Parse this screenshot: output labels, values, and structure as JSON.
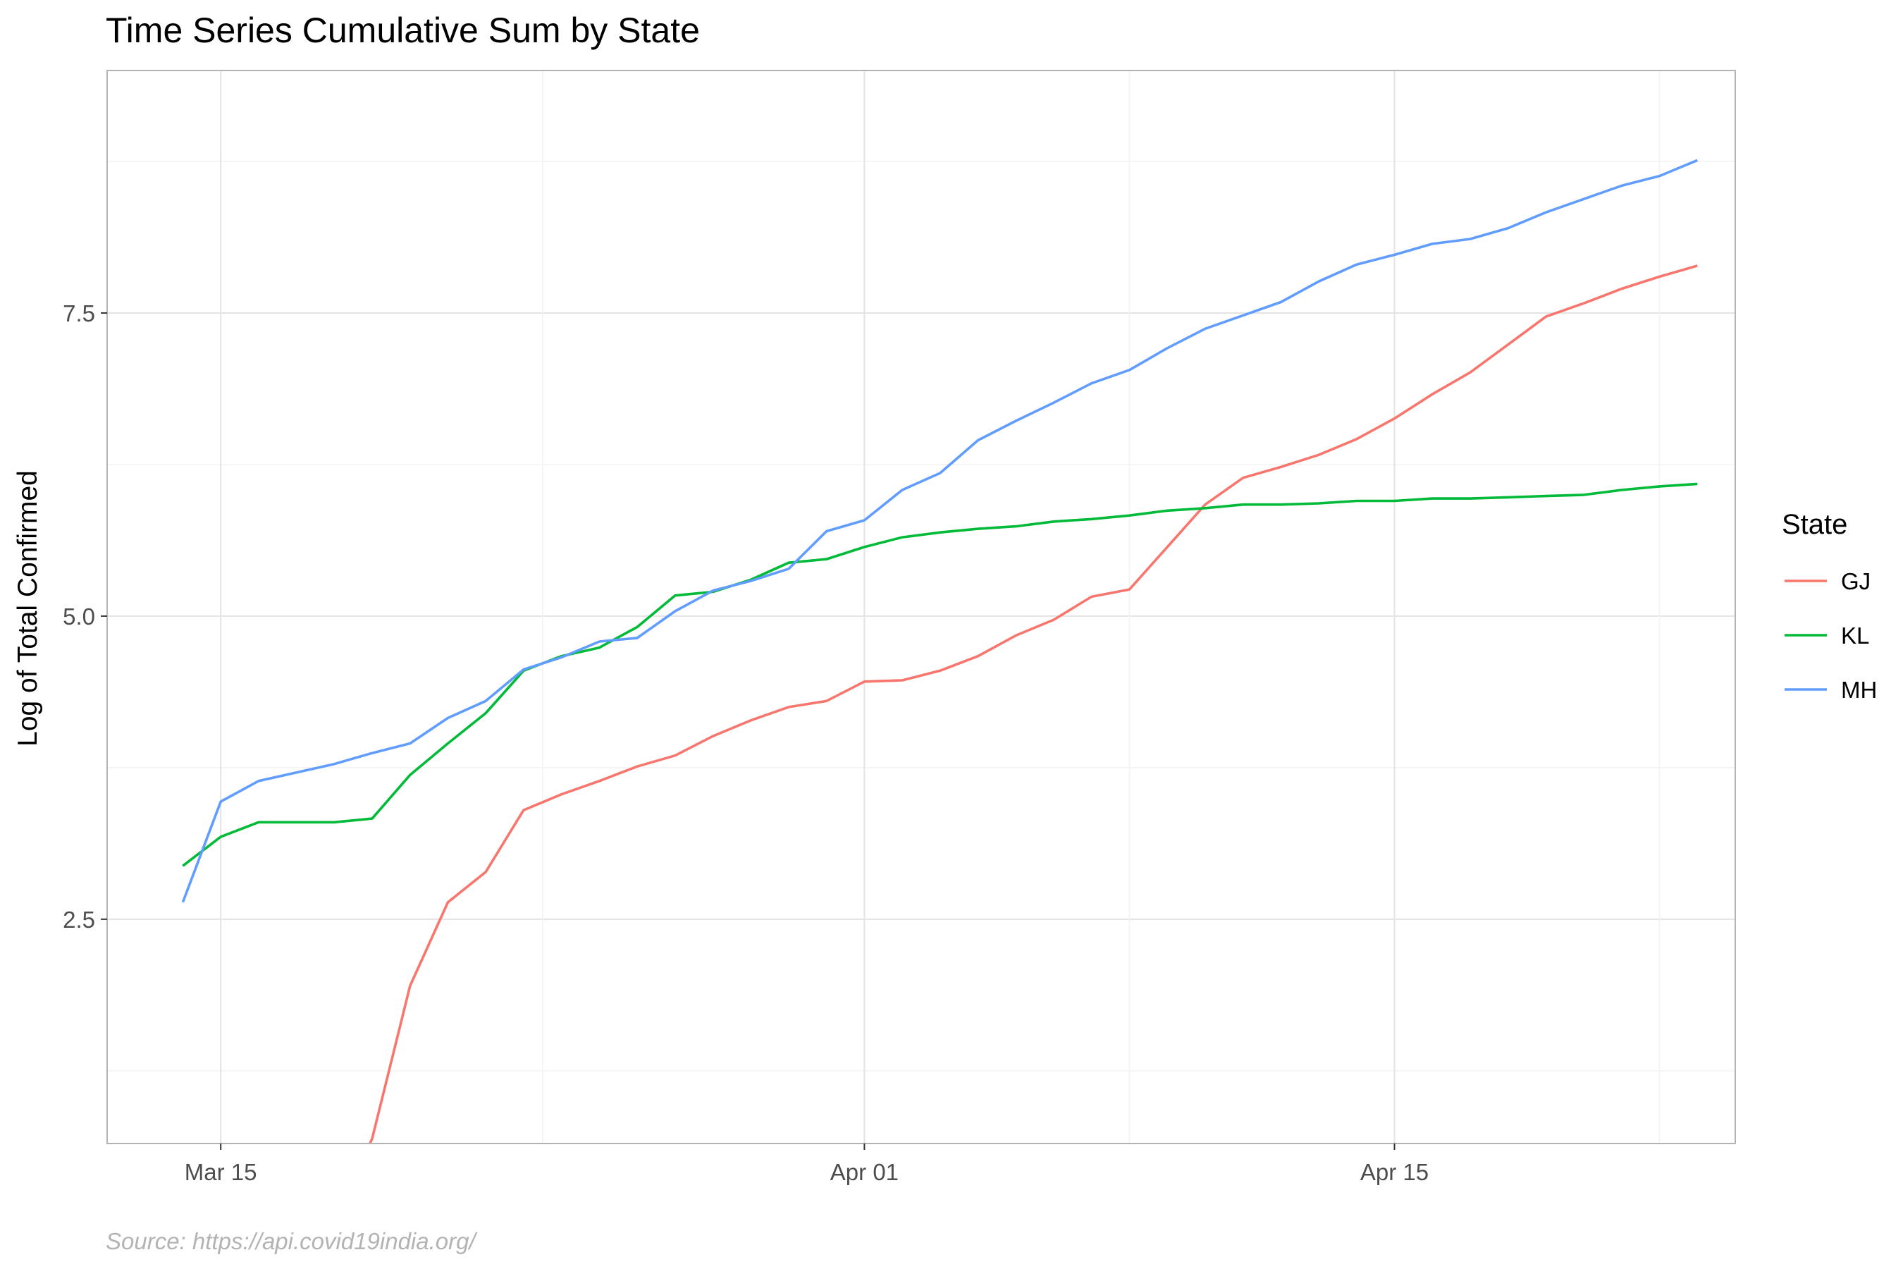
{
  "chart_data": {
    "type": "line",
    "title": "Time Series Cumulative Sum by State",
    "xlabel": "",
    "ylabel": "Log of Total Confirmed",
    "caption": "Source: https://api.covid19india.org/",
    "x_start_date": "2020-03-14",
    "x_end_date": "2020-04-23",
    "xlim": [
      "2020-03-12",
      "2020-04-24"
    ],
    "ylim": [
      0.65,
      9.5
    ],
    "x_ticks": [
      {
        "date": "2020-03-15",
        "label": "Mar 15"
      },
      {
        "date": "2020-04-01",
        "label": "Apr 01"
      },
      {
        "date": "2020-04-15",
        "label": "Apr 15"
      }
    ],
    "y_ticks": [
      {
        "value": 2.5,
        "label": "2.5"
      },
      {
        "value": 5.0,
        "label": "5.0"
      },
      {
        "value": 7.5,
        "label": "7.5"
      }
    ],
    "grid": true,
    "legend": {
      "title": "State",
      "position": "right"
    },
    "series": [
      {
        "name": "GJ",
        "color": "#F8766D",
        "x_start": "2020-03-18",
        "values": [
          0.0,
          0.69,
          1.95,
          2.64,
          2.89,
          3.4,
          3.53,
          3.64,
          3.76,
          3.85,
          4.01,
          4.14,
          4.25,
          4.3,
          4.46,
          4.47,
          4.55,
          4.67,
          4.84,
          4.97,
          5.16,
          5.22,
          5.57,
          5.92,
          6.14,
          6.23,
          6.33,
          6.46,
          6.63,
          6.83,
          7.01,
          7.24,
          7.47,
          7.58,
          7.7,
          7.8,
          7.89
        ]
      },
      {
        "name": "KL",
        "color": "#00BA38",
        "x_start": "2020-03-14",
        "values": [
          2.94,
          3.18,
          3.3,
          3.3,
          3.3,
          3.33,
          3.69,
          3.95,
          4.2,
          4.55,
          4.67,
          4.74,
          4.91,
          5.17,
          5.2,
          5.3,
          5.44,
          5.47,
          5.57,
          5.65,
          5.69,
          5.72,
          5.74,
          5.78,
          5.8,
          5.83,
          5.87,
          5.89,
          5.92,
          5.92,
          5.93,
          5.95,
          5.95,
          5.97,
          5.97,
          5.98,
          5.99,
          6.0,
          6.04,
          6.07,
          6.09
        ]
      },
      {
        "name": "MH",
        "color": "#619CFF",
        "x_start": "2020-03-14",
        "values": [
          2.64,
          3.47,
          3.64,
          3.71,
          3.78,
          3.87,
          3.95,
          4.16,
          4.3,
          4.56,
          4.66,
          4.79,
          4.82,
          5.04,
          5.21,
          5.29,
          5.39,
          5.7,
          5.79,
          6.04,
          6.18,
          6.45,
          6.61,
          6.76,
          6.92,
          7.03,
          7.21,
          7.37,
          7.48,
          7.59,
          7.76,
          7.9,
          7.98,
          8.07,
          8.11,
          8.2,
          8.33,
          8.44,
          8.55,
          8.63,
          8.76
        ]
      }
    ]
  }
}
